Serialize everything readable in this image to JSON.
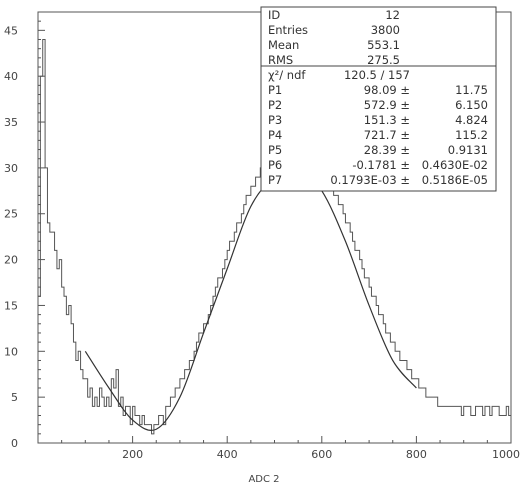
{
  "chart_data": {
    "type": "line",
    "title": "",
    "xlabel": "ADC 2",
    "ylabel": "",
    "xlim": [
      0,
      1000
    ],
    "ylim": [
      0,
      47
    ],
    "grid": false,
    "legend": "none",
    "x_ticks": [
      "200",
      "400",
      "600",
      "800",
      "1000"
    ],
    "y_ticks": [
      "0",
      "5",
      "10",
      "15",
      "20",
      "25",
      "30",
      "35",
      "40",
      "45"
    ],
    "series": [
      {
        "kind": "histogram",
        "bin_width": 5,
        "x": [
          0,
          5,
          10,
          15,
          20,
          25,
          30,
          35,
          40,
          45,
          50,
          55,
          60,
          65,
          70,
          75,
          80,
          85,
          90,
          95,
          100,
          105,
          110,
          115,
          120,
          125,
          130,
          135,
          140,
          145,
          150,
          155,
          160,
          165,
          170,
          175,
          180,
          185,
          190,
          195,
          200,
          205,
          210,
          215,
          220,
          225,
          230,
          235,
          240,
          245,
          250,
          255,
          260,
          265,
          270,
          275,
          280,
          285,
          290,
          295,
          300,
          305,
          310,
          315,
          320,
          325,
          330,
          335,
          340,
          345,
          350,
          355,
          360,
          365,
          370,
          375,
          380,
          385,
          390,
          395,
          400,
          405,
          410,
          415,
          420,
          425,
          430,
          435,
          440,
          445,
          450,
          455,
          460,
          465,
          470,
          475,
          480,
          485,
          490,
          495,
          500,
          505,
          510,
          515,
          520,
          525,
          530,
          535,
          540,
          545,
          550,
          555,
          560,
          565,
          570,
          575,
          580,
          585,
          590,
          595,
          600,
          605,
          610,
          615,
          620,
          625,
          630,
          635,
          640,
          645,
          650,
          655,
          660,
          665,
          670,
          675,
          680,
          685,
          690,
          695,
          700,
          705,
          710,
          715,
          720,
          725,
          730,
          735,
          740,
          745,
          750,
          755,
          760,
          765,
          770,
          775,
          780,
          785,
          790,
          795,
          800,
          805,
          810,
          815,
          820,
          825,
          830,
          835,
          840,
          845,
          850,
          855,
          860,
          865,
          870,
          875,
          880,
          885,
          890,
          895,
          900,
          905,
          910,
          915,
          920,
          925,
          930,
          935,
          940,
          945,
          950,
          955,
          960,
          965,
          970,
          975,
          980,
          985,
          990,
          995
        ],
        "values": [
          16,
          40,
          44,
          30,
          24,
          23,
          23,
          21,
          19,
          20,
          17,
          16,
          14,
          15,
          13,
          11,
          9,
          10,
          8,
          7,
          7,
          5,
          6,
          4,
          5,
          4,
          6,
          5,
          4,
          5,
          4,
          7,
          6,
          8,
          4,
          5,
          3,
          4,
          4,
          2,
          4,
          3,
          3,
          2,
          3,
          2,
          2,
          2,
          1,
          2,
          2,
          3,
          3,
          2,
          4,
          4,
          5,
          5,
          6,
          6,
          7,
          7,
          8,
          8,
          9,
          9,
          10,
          11,
          12,
          12,
          13,
          13,
          14,
          15,
          16,
          17,
          18,
          18,
          19,
          20,
          21,
          22,
          22,
          23,
          24,
          24,
          25,
          26,
          27,
          27,
          28,
          28,
          29,
          29,
          30,
          30,
          30,
          29,
          31,
          30,
          31,
          30,
          31,
          30,
          31,
          30,
          31,
          30,
          29,
          31,
          30,
          33,
          29,
          32,
          31,
          30,
          31,
          29,
          31,
          30,
          28,
          30,
          29,
          28,
          29,
          27,
          27,
          26,
          26,
          25,
          24,
          24,
          23,
          22,
          21,
          21,
          20,
          19,
          18,
          18,
          17,
          16,
          16,
          15,
          14,
          14,
          13,
          12,
          12,
          11,
          11,
          10,
          10,
          9,
          9,
          9,
          8,
          8,
          7,
          7,
          7,
          6,
          6,
          6,
          5,
          5,
          5,
          5,
          5,
          4,
          4,
          4,
          4,
          4,
          4,
          4,
          4,
          4,
          4,
          3,
          4,
          4,
          4,
          3,
          3,
          4,
          4,
          4,
          3,
          4,
          4,
          3,
          4,
          4,
          4,
          3,
          3,
          3,
          4,
          3
        ],
        "interpretation": "approximate step-histogram contents read from the plot, 5-unit bins, entries ~3800"
      },
      {
        "kind": "fit",
        "x": [
          100,
          150,
          200,
          250,
          300,
          350,
          400,
          450,
          500,
          550,
          600,
          650,
          700,
          750,
          800
        ],
        "values": [
          10,
          6,
          2.5,
          1.5,
          5,
          12,
          19,
          25.8,
          29,
          30,
          27.5,
          22,
          15,
          9,
          6
        ]
      }
    ],
    "stats_box": [
      {
        "label": "ID",
        "value": "12"
      },
      {
        "label": "Entries",
        "value": "3800"
      },
      {
        "label": "Mean",
        "value": "553.1"
      },
      {
        "label": "RMS",
        "value": "275.5"
      }
    ],
    "fit_header": {
      "label": "χ²/ ndf",
      "value": "120.5 /  157"
    },
    "fit_params": [
      {
        "label": "P1",
        "value": "98.09 ±",
        "error": "11.75"
      },
      {
        "label": "P2",
        "value": "572.9 ±",
        "error": "6.150"
      },
      {
        "label": "P3",
        "value": "151.3 ±",
        "error": "4.824"
      },
      {
        "label": "P4",
        "value": "721.7 ±",
        "error": "115.2"
      },
      {
        "label": "P5",
        "value": "28.39 ±",
        "error": "0.9131"
      },
      {
        "label": "P6",
        "value": "-0.1781 ±",
        "error": "0.4630E-02"
      },
      {
        "label": "P7",
        "value": "0.1793E-03 ±",
        "error": "0.5186E-05"
      }
    ]
  }
}
